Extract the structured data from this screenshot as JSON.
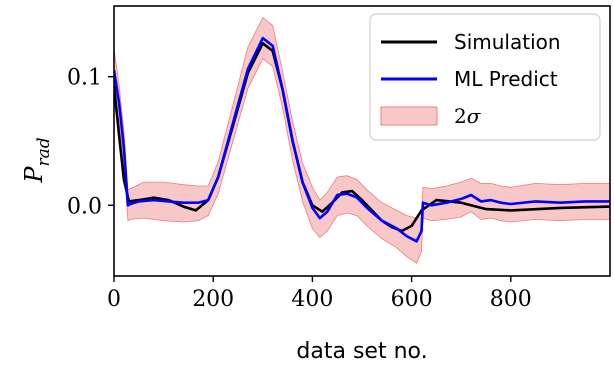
{
  "chart_data": {
    "type": "line",
    "title": "",
    "xlabel": "data set no.",
    "ylabel_main": "P",
    "ylabel_sub": "rad",
    "xlim": [
      0,
      1000
    ],
    "ylim": [
      -0.055,
      0.155
    ],
    "xticks": [
      0,
      200,
      400,
      600,
      800
    ],
    "xtick_labels": [
      "0",
      "200",
      "400",
      "600",
      "800"
    ],
    "yticks": [
      0.0,
      0.1
    ],
    "ytick_labels": [
      "0.0",
      "0.1"
    ],
    "grid": false,
    "legend_position": "top-right",
    "legend": {
      "simulation": "Simulation",
      "ml_predict": "ML Predict",
      "band_prefix": "2",
      "band_sigma": "σ"
    },
    "colors": {
      "simulation": "#000000",
      "ml_predict": "#0000ff",
      "band_fill": "#f4a3a3",
      "band_edge": "#ef7d7d"
    },
    "series": [
      {
        "name": "Simulation",
        "x": [
          0,
          10,
          20,
          30,
          50,
          80,
          110,
          140,
          165,
          190,
          210,
          240,
          270,
          300,
          320,
          340,
          360,
          380,
          400,
          420,
          440,
          460,
          480,
          500,
          520,
          540,
          560,
          580,
          600,
          620,
          650,
          700,
          750,
          800,
          900,
          1000
        ],
        "y": [
          0.093,
          0.055,
          0.02,
          0.003,
          0.004,
          0.006,
          0.004,
          -0.001,
          -0.004,
          0.004,
          0.022,
          0.062,
          0.103,
          0.126,
          0.12,
          0.09,
          0.05,
          0.018,
          0.0,
          -0.005,
          0.002,
          0.01,
          0.011,
          0.004,
          -0.004,
          -0.012,
          -0.017,
          -0.02,
          -0.016,
          -0.004,
          0.004,
          0.002,
          -0.003,
          -0.004,
          -0.002,
          -0.001
        ]
      },
      {
        "name": "ML Predict",
        "x": [
          0,
          10,
          20,
          28,
          33,
          50,
          80,
          110,
          140,
          170,
          190,
          210,
          240,
          270,
          300,
          320,
          340,
          360,
          380,
          400,
          415,
          430,
          450,
          470,
          490,
          510,
          540,
          570,
          590,
          610,
          620,
          623,
          640,
          670,
          700,
          720,
          740,
          760,
          780,
          800,
          850,
          900,
          950,
          1000
        ],
        "y": [
          0.105,
          0.08,
          0.045,
          0.0,
          0.001,
          0.003,
          0.004,
          0.003,
          0.002,
          0.002,
          0.004,
          0.022,
          0.064,
          0.106,
          0.13,
          0.124,
          0.09,
          0.05,
          0.018,
          -0.002,
          -0.01,
          -0.005,
          0.008,
          0.009,
          0.006,
          -0.002,
          -0.012,
          -0.018,
          -0.024,
          -0.028,
          -0.02,
          0.002,
          0.0,
          0.002,
          0.005,
          0.008,
          0.003,
          0.004,
          0.002,
          0.001,
          0.003,
          0.002,
          0.003,
          0.003
        ]
      },
      {
        "name": "2σ",
        "x": [
          0,
          10,
          20,
          28,
          33,
          60,
          100,
          140,
          170,
          190,
          210,
          240,
          270,
          300,
          320,
          340,
          360,
          380,
          400,
          415,
          430,
          450,
          470,
          490,
          510,
          540,
          570,
          590,
          610,
          620,
          623,
          640,
          670,
          700,
          720,
          740,
          760,
          780,
          800,
          850,
          900,
          950,
          1000
        ],
        "upper": [
          0.122,
          0.094,
          0.058,
          0.012,
          0.013,
          0.018,
          0.018,
          0.016,
          0.015,
          0.015,
          0.034,
          0.078,
          0.123,
          0.146,
          0.14,
          0.104,
          0.065,
          0.033,
          0.014,
          0.004,
          0.01,
          0.022,
          0.023,
          0.02,
          0.012,
          0.002,
          -0.004,
          -0.008,
          -0.01,
          -0.004,
          0.014,
          0.013,
          0.015,
          0.018,
          0.021,
          0.017,
          0.017,
          0.015,
          0.014,
          0.017,
          0.016,
          0.017,
          0.017
        ],
        "lower": [
          0.088,
          0.066,
          0.032,
          -0.012,
          -0.011,
          -0.01,
          -0.012,
          -0.013,
          -0.012,
          -0.008,
          0.009,
          0.05,
          0.091,
          0.114,
          0.108,
          0.076,
          0.035,
          0.003,
          -0.018,
          -0.025,
          -0.02,
          -0.008,
          -0.006,
          -0.008,
          -0.016,
          -0.026,
          -0.033,
          -0.04,
          -0.045,
          -0.036,
          -0.01,
          -0.012,
          -0.011,
          -0.009,
          -0.005,
          -0.011,
          -0.01,
          -0.012,
          -0.013,
          -0.011,
          -0.012,
          -0.011,
          -0.011
        ]
      }
    ]
  }
}
